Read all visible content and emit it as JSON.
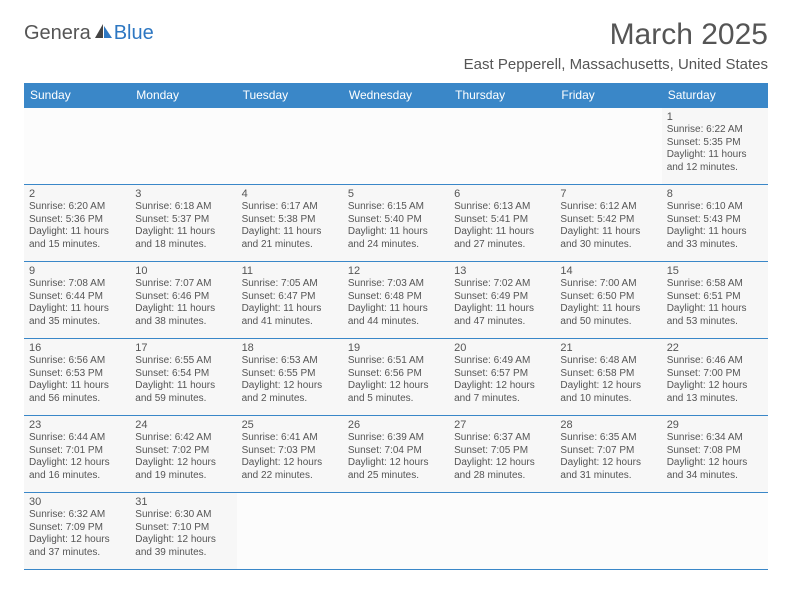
{
  "logo": {
    "part1": "Genera",
    "part2": "Blue"
  },
  "title": "March 2025",
  "subtitle": "East Pepperell, Massachusetts, United States",
  "colors": {
    "header_bg": "#3a87c8",
    "header_text": "#ffffff",
    "cell_bg": "#f7f7f7",
    "text": "#555555",
    "border": "#3a87c8",
    "logo_blue": "#2d77c2",
    "logo_gray": "#555555"
  },
  "weekdays": [
    "Sunday",
    "Monday",
    "Tuesday",
    "Wednesday",
    "Thursday",
    "Friday",
    "Saturday"
  ],
  "weeks": [
    [
      {
        "empty": true
      },
      {
        "empty": true
      },
      {
        "empty": true
      },
      {
        "empty": true
      },
      {
        "empty": true
      },
      {
        "empty": true
      },
      {
        "day": "1",
        "sunrise": "Sunrise: 6:22 AM",
        "sunset": "Sunset: 5:35 PM",
        "daylight1": "Daylight: 11 hours",
        "daylight2": "and 12 minutes."
      }
    ],
    [
      {
        "day": "2",
        "sunrise": "Sunrise: 6:20 AM",
        "sunset": "Sunset: 5:36 PM",
        "daylight1": "Daylight: 11 hours",
        "daylight2": "and 15 minutes."
      },
      {
        "day": "3",
        "sunrise": "Sunrise: 6:18 AM",
        "sunset": "Sunset: 5:37 PM",
        "daylight1": "Daylight: 11 hours",
        "daylight2": "and 18 minutes."
      },
      {
        "day": "4",
        "sunrise": "Sunrise: 6:17 AM",
        "sunset": "Sunset: 5:38 PM",
        "daylight1": "Daylight: 11 hours",
        "daylight2": "and 21 minutes."
      },
      {
        "day": "5",
        "sunrise": "Sunrise: 6:15 AM",
        "sunset": "Sunset: 5:40 PM",
        "daylight1": "Daylight: 11 hours",
        "daylight2": "and 24 minutes."
      },
      {
        "day": "6",
        "sunrise": "Sunrise: 6:13 AM",
        "sunset": "Sunset: 5:41 PM",
        "daylight1": "Daylight: 11 hours",
        "daylight2": "and 27 minutes."
      },
      {
        "day": "7",
        "sunrise": "Sunrise: 6:12 AM",
        "sunset": "Sunset: 5:42 PM",
        "daylight1": "Daylight: 11 hours",
        "daylight2": "and 30 minutes."
      },
      {
        "day": "8",
        "sunrise": "Sunrise: 6:10 AM",
        "sunset": "Sunset: 5:43 PM",
        "daylight1": "Daylight: 11 hours",
        "daylight2": "and 33 minutes."
      }
    ],
    [
      {
        "day": "9",
        "sunrise": "Sunrise: 7:08 AM",
        "sunset": "Sunset: 6:44 PM",
        "daylight1": "Daylight: 11 hours",
        "daylight2": "and 35 minutes."
      },
      {
        "day": "10",
        "sunrise": "Sunrise: 7:07 AM",
        "sunset": "Sunset: 6:46 PM",
        "daylight1": "Daylight: 11 hours",
        "daylight2": "and 38 minutes."
      },
      {
        "day": "11",
        "sunrise": "Sunrise: 7:05 AM",
        "sunset": "Sunset: 6:47 PM",
        "daylight1": "Daylight: 11 hours",
        "daylight2": "and 41 minutes."
      },
      {
        "day": "12",
        "sunrise": "Sunrise: 7:03 AM",
        "sunset": "Sunset: 6:48 PM",
        "daylight1": "Daylight: 11 hours",
        "daylight2": "and 44 minutes."
      },
      {
        "day": "13",
        "sunrise": "Sunrise: 7:02 AM",
        "sunset": "Sunset: 6:49 PM",
        "daylight1": "Daylight: 11 hours",
        "daylight2": "and 47 minutes."
      },
      {
        "day": "14",
        "sunrise": "Sunrise: 7:00 AM",
        "sunset": "Sunset: 6:50 PM",
        "daylight1": "Daylight: 11 hours",
        "daylight2": "and 50 minutes."
      },
      {
        "day": "15",
        "sunrise": "Sunrise: 6:58 AM",
        "sunset": "Sunset: 6:51 PM",
        "daylight1": "Daylight: 11 hours",
        "daylight2": "and 53 minutes."
      }
    ],
    [
      {
        "day": "16",
        "sunrise": "Sunrise: 6:56 AM",
        "sunset": "Sunset: 6:53 PM",
        "daylight1": "Daylight: 11 hours",
        "daylight2": "and 56 minutes."
      },
      {
        "day": "17",
        "sunrise": "Sunrise: 6:55 AM",
        "sunset": "Sunset: 6:54 PM",
        "daylight1": "Daylight: 11 hours",
        "daylight2": "and 59 minutes."
      },
      {
        "day": "18",
        "sunrise": "Sunrise: 6:53 AM",
        "sunset": "Sunset: 6:55 PM",
        "daylight1": "Daylight: 12 hours",
        "daylight2": "and 2 minutes."
      },
      {
        "day": "19",
        "sunrise": "Sunrise: 6:51 AM",
        "sunset": "Sunset: 6:56 PM",
        "daylight1": "Daylight: 12 hours",
        "daylight2": "and 5 minutes."
      },
      {
        "day": "20",
        "sunrise": "Sunrise: 6:49 AM",
        "sunset": "Sunset: 6:57 PM",
        "daylight1": "Daylight: 12 hours",
        "daylight2": "and 7 minutes."
      },
      {
        "day": "21",
        "sunrise": "Sunrise: 6:48 AM",
        "sunset": "Sunset: 6:58 PM",
        "daylight1": "Daylight: 12 hours",
        "daylight2": "and 10 minutes."
      },
      {
        "day": "22",
        "sunrise": "Sunrise: 6:46 AM",
        "sunset": "Sunset: 7:00 PM",
        "daylight1": "Daylight: 12 hours",
        "daylight2": "and 13 minutes."
      }
    ],
    [
      {
        "day": "23",
        "sunrise": "Sunrise: 6:44 AM",
        "sunset": "Sunset: 7:01 PM",
        "daylight1": "Daylight: 12 hours",
        "daylight2": "and 16 minutes."
      },
      {
        "day": "24",
        "sunrise": "Sunrise: 6:42 AM",
        "sunset": "Sunset: 7:02 PM",
        "daylight1": "Daylight: 12 hours",
        "daylight2": "and 19 minutes."
      },
      {
        "day": "25",
        "sunrise": "Sunrise: 6:41 AM",
        "sunset": "Sunset: 7:03 PM",
        "daylight1": "Daylight: 12 hours",
        "daylight2": "and 22 minutes."
      },
      {
        "day": "26",
        "sunrise": "Sunrise: 6:39 AM",
        "sunset": "Sunset: 7:04 PM",
        "daylight1": "Daylight: 12 hours",
        "daylight2": "and 25 minutes."
      },
      {
        "day": "27",
        "sunrise": "Sunrise: 6:37 AM",
        "sunset": "Sunset: 7:05 PM",
        "daylight1": "Daylight: 12 hours",
        "daylight2": "and 28 minutes."
      },
      {
        "day": "28",
        "sunrise": "Sunrise: 6:35 AM",
        "sunset": "Sunset: 7:07 PM",
        "daylight1": "Daylight: 12 hours",
        "daylight2": "and 31 minutes."
      },
      {
        "day": "29",
        "sunrise": "Sunrise: 6:34 AM",
        "sunset": "Sunset: 7:08 PM",
        "daylight1": "Daylight: 12 hours",
        "daylight2": "and 34 minutes."
      }
    ],
    [
      {
        "day": "30",
        "sunrise": "Sunrise: 6:32 AM",
        "sunset": "Sunset: 7:09 PM",
        "daylight1": "Daylight: 12 hours",
        "daylight2": "and 37 minutes."
      },
      {
        "day": "31",
        "sunrise": "Sunrise: 6:30 AM",
        "sunset": "Sunset: 7:10 PM",
        "daylight1": "Daylight: 12 hours",
        "daylight2": "and 39 minutes."
      },
      {
        "empty": true
      },
      {
        "empty": true
      },
      {
        "empty": true
      },
      {
        "empty": true
      },
      {
        "empty": true
      }
    ]
  ]
}
